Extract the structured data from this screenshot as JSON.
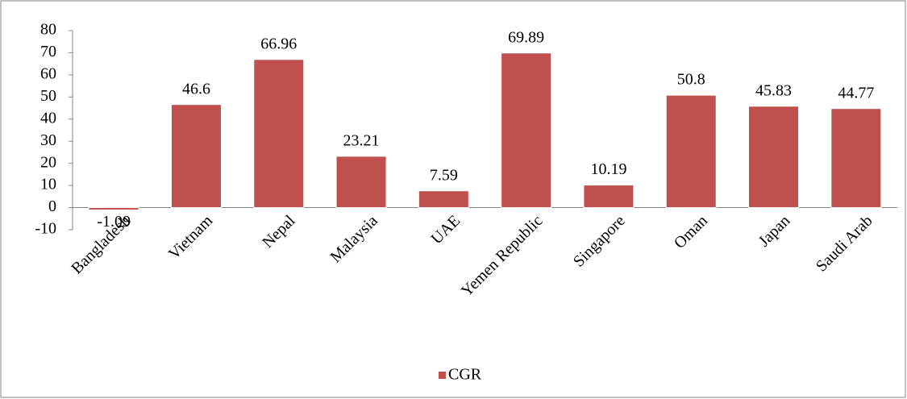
{
  "chart_data": {
    "type": "bar",
    "categories": [
      "Bangladesh",
      "Vietnam",
      "Nepal",
      "Malaysia",
      "UAE",
      "Yemen Republic",
      "Singapore",
      "Oman",
      "Japan",
      "Saudi Arab"
    ],
    "series": [
      {
        "name": "CGR",
        "color": "#c0504d",
        "values": [
          -1.09,
          46.6,
          66.96,
          23.21,
          7.59,
          69.89,
          10.19,
          50.8,
          45.83,
          44.77
        ]
      }
    ],
    "ylim": [
      -10,
      80
    ],
    "yticks": [
      -10,
      0,
      10,
      20,
      30,
      40,
      50,
      60,
      70,
      80
    ],
    "grid": false,
    "legend": "bottom"
  }
}
